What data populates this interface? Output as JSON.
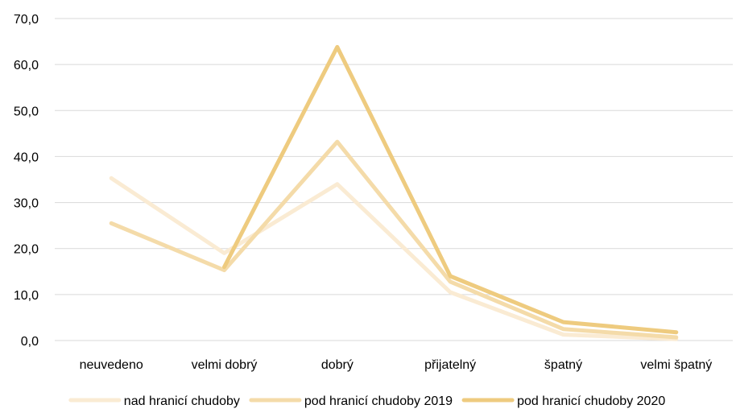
{
  "chart_data": {
    "type": "line",
    "categories": [
      "neuvedeno",
      "velmi dobrý",
      "dobrý",
      "přijatelný",
      "špatný",
      "velmi špatný"
    ],
    "y_ticks": [
      "0,0",
      "10,0",
      "20,0",
      "30,0",
      "40,0",
      "50,0",
      "60,0",
      "70,0"
    ],
    "ylim": [
      0,
      70
    ],
    "grid": true,
    "legend_position": "bottom",
    "series": [
      {
        "name": "nad hranicí chudoby",
        "color": "#faebd3",
        "values": [
          35.3,
          19.0,
          34.0,
          10.5,
          1.3,
          0.3
        ]
      },
      {
        "name": "pod hranicí chudoby 2019",
        "color": "#f4dba9",
        "values": [
          25.5,
          15.3,
          43.2,
          12.8,
          2.5,
          0.7
        ]
      },
      {
        "name": "pod hranicí chudoby 2020",
        "color": "#eecb7f",
        "values": [
          null,
          16.0,
          63.8,
          14.0,
          4.0,
          1.8
        ]
      }
    ]
  }
}
